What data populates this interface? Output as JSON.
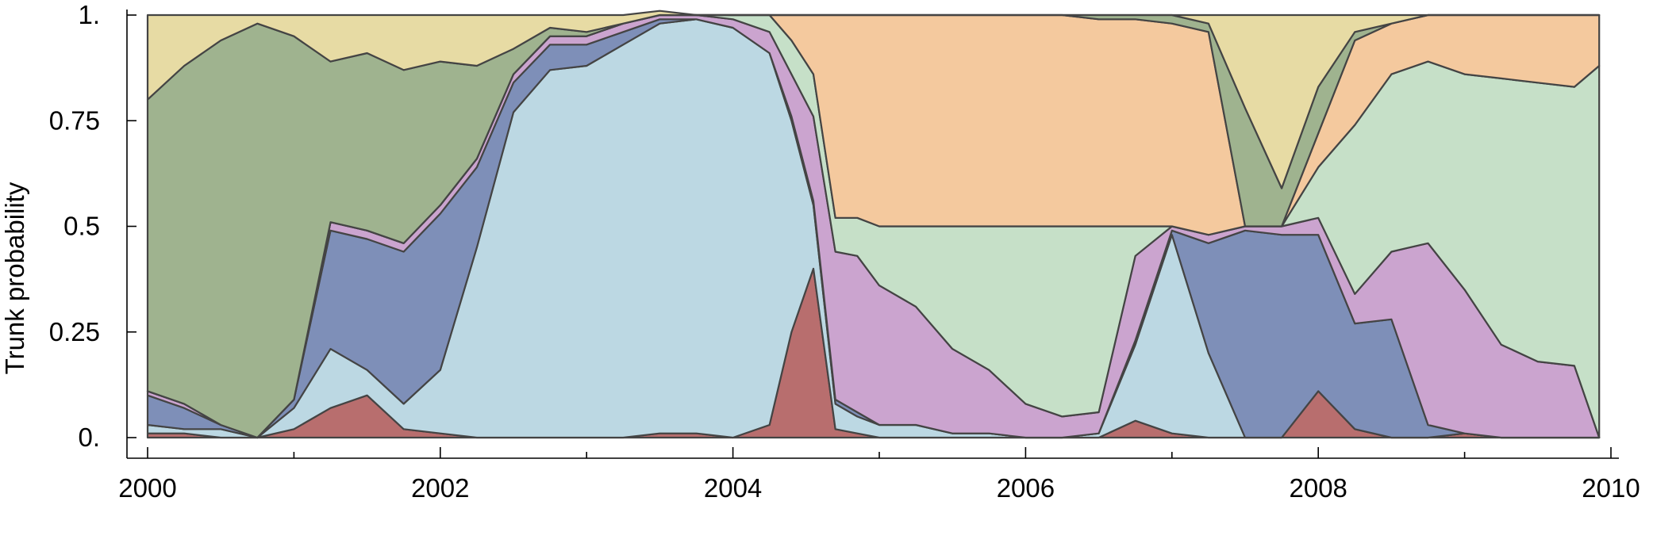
{
  "chart_data": {
    "type": "area",
    "stacked": true,
    "title": "",
    "xlabel": "",
    "ylabel": "Trunk probability",
    "xlim": [
      2000,
      2010
    ],
    "ylim": [
      0,
      1
    ],
    "x_ticks": [
      2000,
      2002,
      2004,
      2006,
      2008,
      2010
    ],
    "x_tick_labels": [
      "2000",
      "2002",
      "2004",
      "2006",
      "2008",
      "2010"
    ],
    "y_ticks": [
      0,
      0.25,
      0.5,
      0.75,
      1
    ],
    "y_tick_labels": [
      "0.",
      "0.25",
      "0.5",
      "0.75",
      "1."
    ],
    "grid": false,
    "legend": "none",
    "x": [
      2000.0,
      2000.25,
      2000.5,
      2000.75,
      2001.0,
      2001.25,
      2001.5,
      2001.75,
      2002.0,
      2002.25,
      2002.5,
      2002.75,
      2003.0,
      2003.25,
      2003.5,
      2003.75,
      2004.0,
      2004.25,
      2004.4,
      2004.55,
      2004.7,
      2004.85,
      2005.0,
      2005.25,
      2005.5,
      2005.75,
      2006.0,
      2006.25,
      2006.5,
      2006.75,
      2007.0,
      2007.25,
      2007.5,
      2007.75,
      2008.0,
      2008.25,
      2008.5,
      2008.75,
      2009.0,
      2009.25,
      2009.5,
      2009.75,
      2009.92
    ],
    "series": [
      {
        "color": "#b86e6e",
        "values": [
          0.01,
          0.01,
          0.0,
          0.0,
          0.02,
          0.07,
          0.1,
          0.02,
          0.01,
          0.0,
          0.0,
          0.0,
          0.0,
          0.0,
          0.01,
          0.01,
          0.0,
          0.03,
          0.25,
          0.4,
          0.02,
          0.01,
          0.0,
          0.0,
          0.0,
          0.0,
          0.0,
          0.0,
          0.0,
          0.04,
          0.01,
          0.0,
          0.0,
          0.0,
          0.11,
          0.02,
          0.0,
          0.0,
          0.01,
          0.0,
          0.0,
          0.0,
          0.0
        ]
      },
      {
        "color": "#bcd8e3",
        "values": [
          0.02,
          0.01,
          0.02,
          0.0,
          0.05,
          0.14,
          0.06,
          0.06,
          0.15,
          0.45,
          0.77,
          0.87,
          0.88,
          0.93,
          0.97,
          0.98,
          0.97,
          0.88,
          0.5,
          0.15,
          0.06,
          0.04,
          0.03,
          0.03,
          0.01,
          0.01,
          0.0,
          0.0,
          0.01,
          0.18,
          0.47,
          0.2,
          0.0,
          0.0,
          0.0,
          0.0,
          0.0,
          0.0,
          0.0,
          0.0,
          0.0,
          0.0,
          0.0
        ]
      },
      {
        "color": "#7e8fb8",
        "values": [
          0.07,
          0.05,
          0.01,
          0.0,
          0.02,
          0.28,
          0.31,
          0.36,
          0.37,
          0.19,
          0.07,
          0.06,
          0.05,
          0.03,
          0.01,
          0.0,
          0.0,
          0.0,
          0.01,
          0.01,
          0.01,
          0.01,
          0.0,
          0.0,
          0.0,
          0.0,
          0.0,
          0.0,
          0.0,
          0.01,
          0.01,
          0.26,
          0.49,
          0.48,
          0.37,
          0.25,
          0.28,
          0.03,
          0.0,
          0.0,
          0.0,
          0.0,
          0.0
        ]
      },
      {
        "color": "#cba4cf",
        "values": [
          0.01,
          0.01,
          0.0,
          0.0,
          0.0,
          0.02,
          0.02,
          0.02,
          0.02,
          0.02,
          0.02,
          0.02,
          0.02,
          0.02,
          0.01,
          0.01,
          0.02,
          0.05,
          0.1,
          0.2,
          0.35,
          0.37,
          0.33,
          0.28,
          0.2,
          0.15,
          0.08,
          0.05,
          0.05,
          0.2,
          0.01,
          0.02,
          0.01,
          0.02,
          0.04,
          0.07,
          0.16,
          0.43,
          0.34,
          0.22,
          0.18,
          0.17,
          0.0
        ]
      },
      {
        "color": "#c6e0c8",
        "values": [
          0.0,
          0.0,
          0.0,
          0.0,
          0.0,
          0.0,
          0.0,
          0.0,
          0.0,
          0.0,
          0.0,
          0.0,
          0.0,
          0.0,
          0.0,
          0.0,
          0.01,
          0.04,
          0.08,
          0.1,
          0.08,
          0.09,
          0.14,
          0.19,
          0.29,
          0.34,
          0.42,
          0.45,
          0.44,
          0.07,
          0.0,
          0.0,
          0.0,
          0.0,
          0.12,
          0.4,
          0.42,
          0.43,
          0.51,
          0.63,
          0.66,
          0.66,
          0.88
        ]
      },
      {
        "color": "#f4c99e",
        "values": [
          0.0,
          0.0,
          0.0,
          0.0,
          0.0,
          0.0,
          0.0,
          0.0,
          0.0,
          0.0,
          0.0,
          0.0,
          0.0,
          0.0,
          0.0,
          0.0,
          0.0,
          0.0,
          0.06,
          0.14,
          0.48,
          0.48,
          0.5,
          0.5,
          0.5,
          0.5,
          0.5,
          0.5,
          0.49,
          0.49,
          0.48,
          0.48,
          0.0,
          0.0,
          0.08,
          0.2,
          0.12,
          0.11,
          0.14,
          0.15,
          0.16,
          0.17,
          0.12
        ]
      },
      {
        "color": "#9fb38f",
        "values": [
          0.69,
          0.8,
          0.91,
          0.98,
          0.86,
          0.38,
          0.42,
          0.41,
          0.34,
          0.22,
          0.06,
          0.02,
          0.01,
          0.0,
          0.0,
          0.0,
          0.0,
          0.0,
          0.0,
          0.0,
          0.0,
          0.0,
          0.0,
          0.0,
          0.0,
          0.0,
          0.0,
          0.0,
          0.01,
          0.01,
          0.02,
          0.02,
          0.28,
          0.09,
          0.11,
          0.02,
          0.0,
          0.0,
          0.0,
          0.0,
          0.0,
          0.0,
          0.0
        ]
      },
      {
        "color": "#e7dba4",
        "values": [
          0.2,
          0.12,
          0.06,
          0.02,
          0.05,
          0.11,
          0.09,
          0.13,
          0.11,
          0.12,
          0.08,
          0.03,
          0.04,
          0.02,
          0.01,
          0.0,
          0.0,
          0.0,
          0.0,
          0.0,
          0.0,
          0.0,
          0.0,
          0.0,
          0.0,
          0.0,
          0.0,
          0.0,
          0.0,
          0.0,
          0.0,
          0.02,
          0.22,
          0.41,
          0.17,
          0.04,
          0.02,
          0.0,
          0.0,
          0.0,
          0.0,
          0.0,
          0.0
        ]
      }
    ]
  }
}
